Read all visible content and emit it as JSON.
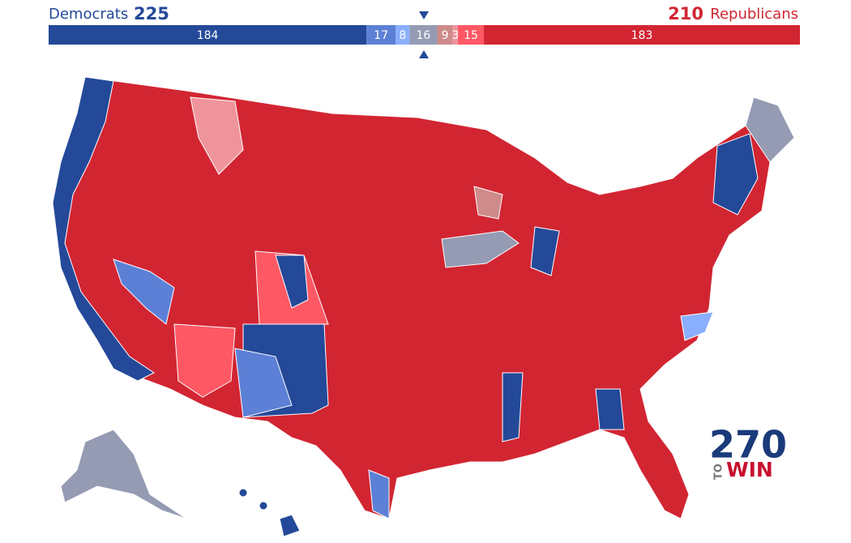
{
  "header": {
    "left_label": "Democrats",
    "left_total": 225,
    "right_total": 210,
    "right_label": "Republicans"
  },
  "bar": {
    "segments": [
      {
        "value": 184,
        "color": "#244999"
      },
      {
        "value": 17,
        "color": "#5c80d6"
      },
      {
        "value": 8,
        "color": "#8aafff"
      },
      {
        "value": 16,
        "color": "#949bb3"
      },
      {
        "value": 9,
        "color": "#cf8a8a"
      },
      {
        "value": 3,
        "color": "#f0949c"
      },
      {
        "value": 15,
        "color": "#ff5865"
      },
      {
        "value": 183,
        "color": "#d22532"
      }
    ]
  },
  "logo": {
    "number": "270",
    "to": "TO",
    "win": "WIN"
  }
}
